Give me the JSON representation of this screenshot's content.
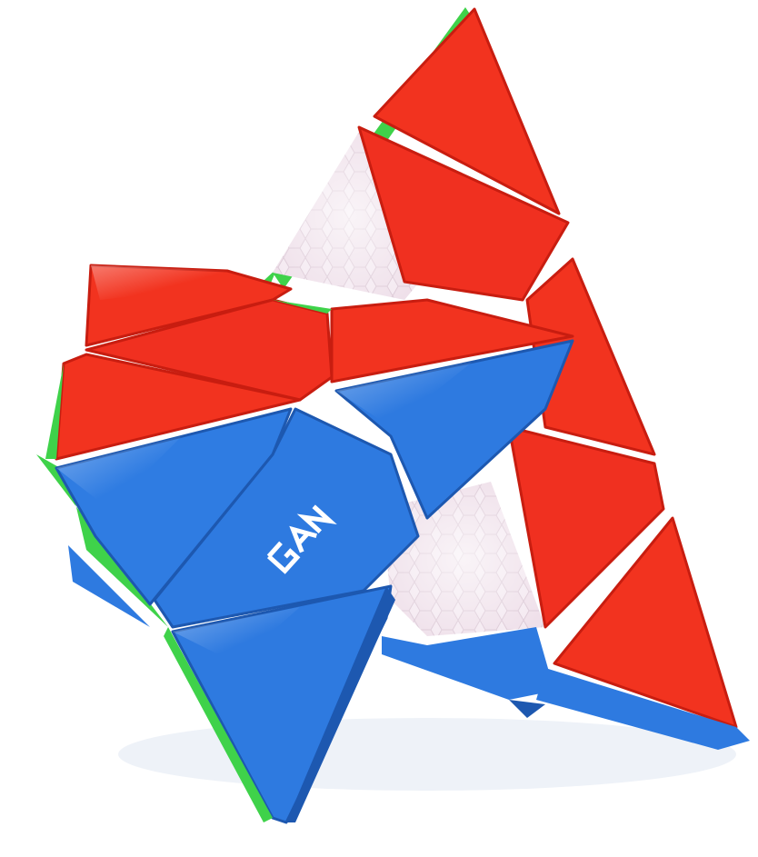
{
  "image": {
    "subject": "pyraminx-puzzle-cube",
    "brand_logo_text": "GAN"
  },
  "colors": {
    "red": "#f2331f",
    "red_dark": "#c81d10",
    "blue": "#2e7ae0",
    "blue_dark": "#1d58b0",
    "green": "#3fd24a",
    "core": "#f1e4ee",
    "background": "#ffffff"
  }
}
